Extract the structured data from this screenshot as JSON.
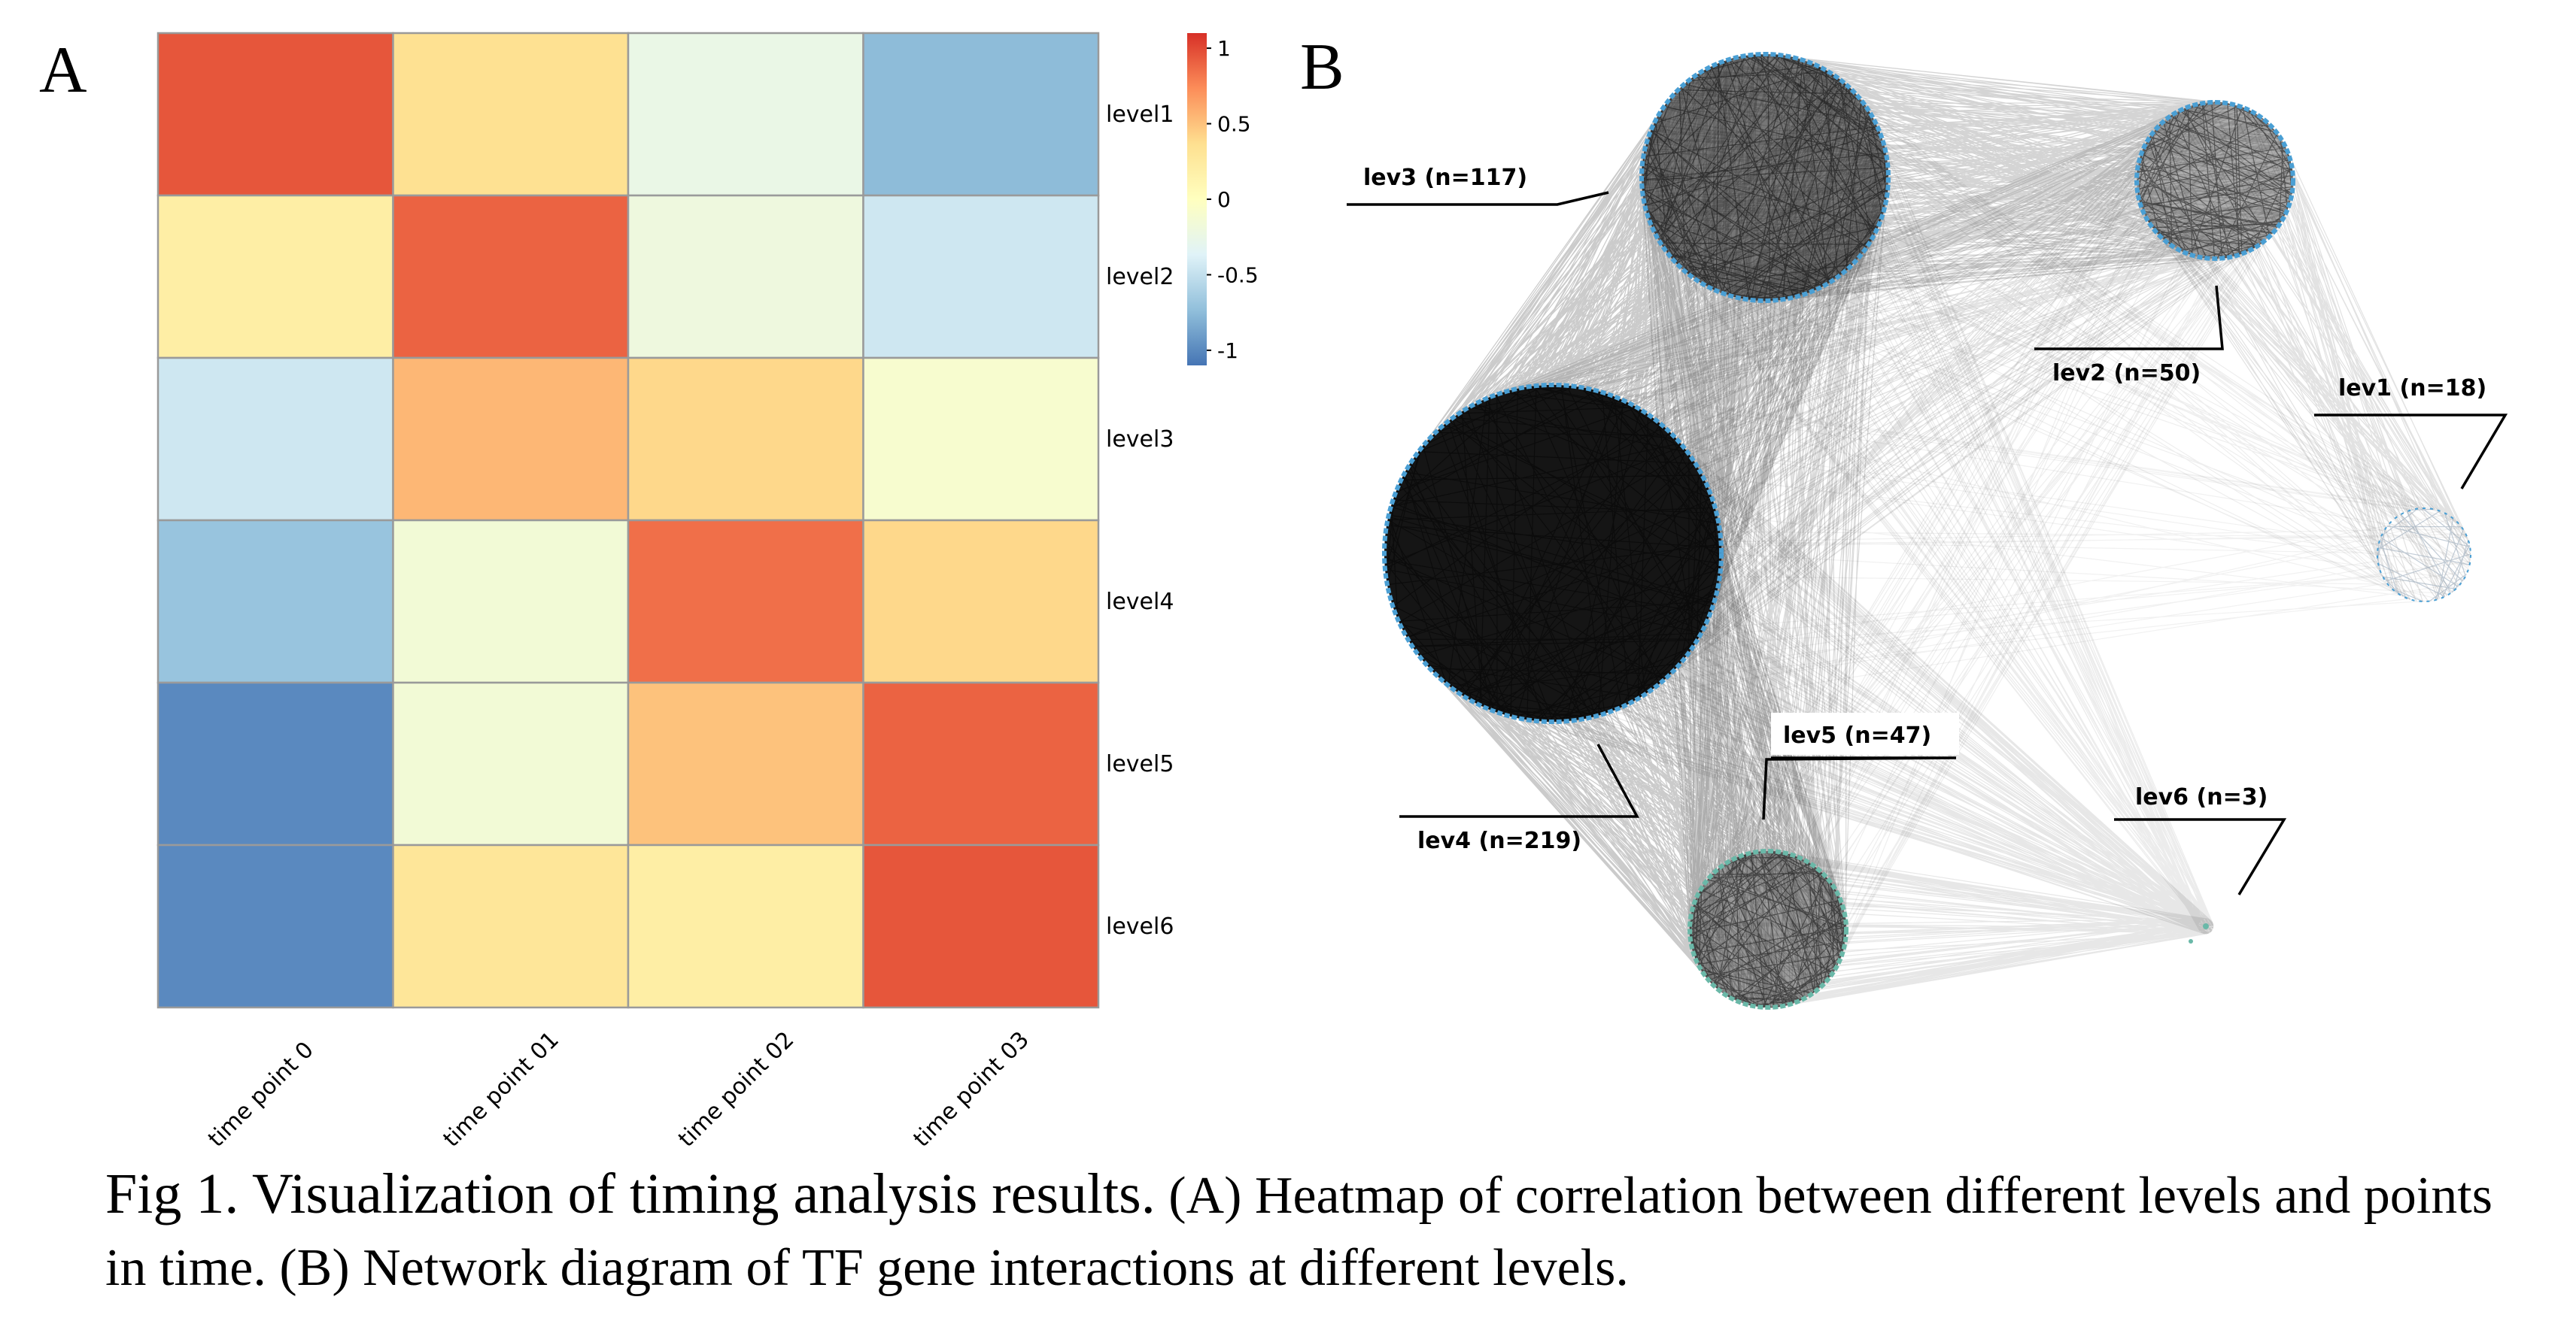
{
  "figure": {
    "panel_a_letter": "A",
    "panel_b_letter": "B",
    "caption_title": "Fig 1. Visualization of timing analysis results.",
    "caption_body": " (A) Heatmap of correlation between different levels and points in time. (B) Network diagram of TF gene interactions at different levels."
  },
  "chart_data": {
    "type": "heatmap",
    "rows": [
      "level1",
      "level2",
      "level3",
      "level4",
      "level5",
      "level6"
    ],
    "columns": [
      "time point 0",
      "time point 01",
      "time point 02",
      "time point 03"
    ],
    "values": [
      [
        0.95,
        0.35,
        -0.25,
        -0.75
      ],
      [
        0.2,
        0.9,
        -0.2,
        -0.45
      ],
      [
        -0.45,
        0.55,
        0.4,
        -0.1
      ],
      [
        -0.7,
        -0.15,
        0.85,
        0.4
      ],
      [
        -1.0,
        -0.15,
        0.5,
        0.9
      ],
      [
        -1.0,
        0.3,
        0.2,
        0.95
      ]
    ],
    "colorbar": {
      "range": [
        -1.1,
        1.1
      ],
      "ticks": [
        1,
        0.5,
        0,
        -0.5,
        -1
      ],
      "tick_labels": [
        "1",
        "0.5",
        "0",
        "-0.5",
        "-1"
      ],
      "colormap": [
        "#4575b4",
        "#91bfdb",
        "#e0f3f8",
        "#ffffbf",
        "#fee090",
        "#fc8d59",
        "#d73027"
      ]
    },
    "grid_color": "#9a9a9a"
  },
  "network": {
    "edge_color": "#111111",
    "node_color_blue": "#4a9fd4",
    "node_color_green": "#6ab8a8",
    "levels": [
      {
        "id": "lev1",
        "label": "lev1 (n=18)",
        "n": 18
      },
      {
        "id": "lev2",
        "label": "lev2 (n=50)",
        "n": 50
      },
      {
        "id": "lev3",
        "label": "lev3 (n=117)",
        "n": 117
      },
      {
        "id": "lev4",
        "label": "lev4 (n=219)",
        "n": 219
      },
      {
        "id": "lev5",
        "label": "lev5 (n=47)",
        "n": 47
      },
      {
        "id": "lev6",
        "label": "lev6 (n=3)",
        "n": 3
      }
    ]
  }
}
